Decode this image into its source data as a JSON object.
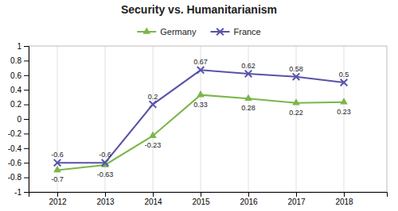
{
  "chart_data": {
    "type": "line",
    "title": "Security vs. Humanitarianism",
    "x": [
      2012,
      2013,
      2014,
      2015,
      2016,
      2017,
      2018
    ],
    "xlim": [
      2011.4,
      2018.9
    ],
    "xticks": [
      2012,
      2013,
      2014,
      2015,
      2016,
      2017,
      2018
    ],
    "ylim": [
      -1,
      1
    ],
    "yticks": [
      -1,
      -0.8,
      -0.6,
      -0.4,
      -0.2,
      0,
      0.2,
      0.4,
      0.6,
      0.8,
      1
    ],
    "grid": "x",
    "legend": "top",
    "data_labels": true,
    "series": [
      {
        "name": "Germany",
        "color": "#7ab648",
        "marker": "triangle",
        "values": [
          -0.7,
          -0.63,
          -0.23,
          0.33,
          0.28,
          0.22,
          0.23
        ]
      },
      {
        "name": "France",
        "color": "#5753a8",
        "marker": "x",
        "values": [
          -0.6,
          -0.6,
          0.2,
          0.67,
          0.62,
          0.58,
          0.5
        ]
      }
    ]
  }
}
